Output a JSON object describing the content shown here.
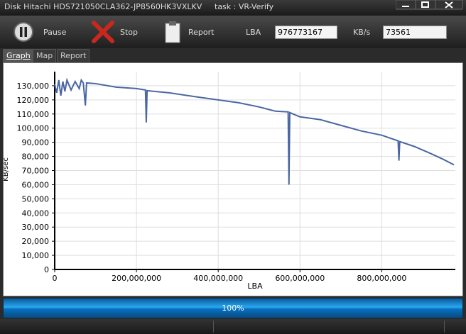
{
  "window": {
    "disk": "Disk Hitachi HDS721050CLA362-JP8560HK3VXLKV",
    "task": "task : VR-Verify"
  },
  "toolbar": {
    "pause": "Pause",
    "stop": "Stop",
    "report": "Report",
    "lba_label": "LBA",
    "lba_value": "976773167",
    "speed_label": "KB/s",
    "speed_value": "73561"
  },
  "tabs": [
    "Graph",
    "Map",
    "Report"
  ],
  "chart_data": {
    "type": "line",
    "x_label": "LBA",
    "y_label": "KB/sec",
    "x": [
      0,
      5000000,
      10000000,
      15000000,
      20000000,
      25000000,
      30000000,
      40000000,
      50000000,
      60000000,
      65000000,
      70000000,
      75000000,
      78000000,
      100000000,
      150000000,
      200000000,
      222000000,
      224000000,
      226000000,
      280000000,
      350000000,
      400000000,
      450000000,
      500000000,
      540000000,
      571000000,
      573000000,
      575000000,
      600000000,
      650000000,
      700000000,
      750000000,
      800000000,
      840000000,
      842000000,
      844000000,
      880000000,
      920000000,
      950000000,
      970000000,
      976773167
    ],
    "series": [
      {
        "name": "KB/sec",
        "color": "#4a67a3",
        "values": [
          131000,
          125000,
          134000,
          123000,
          133000,
          126000,
          134000,
          127000,
          133000,
          128000,
          134000,
          132000,
          116000,
          132000,
          131500,
          129000,
          128000,
          127000,
          104000,
          126500,
          125000,
          122000,
          120000,
          118000,
          115000,
          112000,
          111500,
          60000,
          111000,
          108000,
          106000,
          102000,
          98000,
          95000,
          91000,
          77000,
          90500,
          87000,
          82000,
          78000,
          75000,
          74000
        ]
      }
    ],
    "xlim": [
      0,
      980000000
    ],
    "ylim": [
      0,
      140000
    ],
    "xticks": [
      {
        "value": 0,
        "label": "0"
      },
      {
        "value": 200000000,
        "label": "200,000,000"
      },
      {
        "value": 400000000,
        "label": "400,000,000"
      },
      {
        "value": 600000000,
        "label": "600,000,000"
      },
      {
        "value": 800000000,
        "label": "800,000,000"
      }
    ],
    "yticks": [
      0,
      {
        "value": 10000,
        "label": "10,000"
      },
      {
        "value": 20000,
        "label": "20,000"
      },
      {
        "value": 30000,
        "label": "30,000"
      },
      {
        "value": 40000,
        "label": "40,000"
      },
      {
        "value": 50000,
        "label": "50,000"
      },
      {
        "value": 60000,
        "label": "60,000"
      },
      {
        "value": 70000,
        "label": "70,000"
      },
      {
        "value": 80000,
        "label": "80,000"
      },
      {
        "value": 90000,
        "label": "90,000"
      },
      {
        "value": 100000,
        "label": "100,000"
      },
      {
        "value": 110000,
        "label": "110,000"
      },
      {
        "value": 120000,
        "label": "120,000"
      },
      {
        "value": 130000,
        "label": "130,000"
      }
    ],
    "grid": true
  },
  "progress": {
    "label": "100%"
  }
}
